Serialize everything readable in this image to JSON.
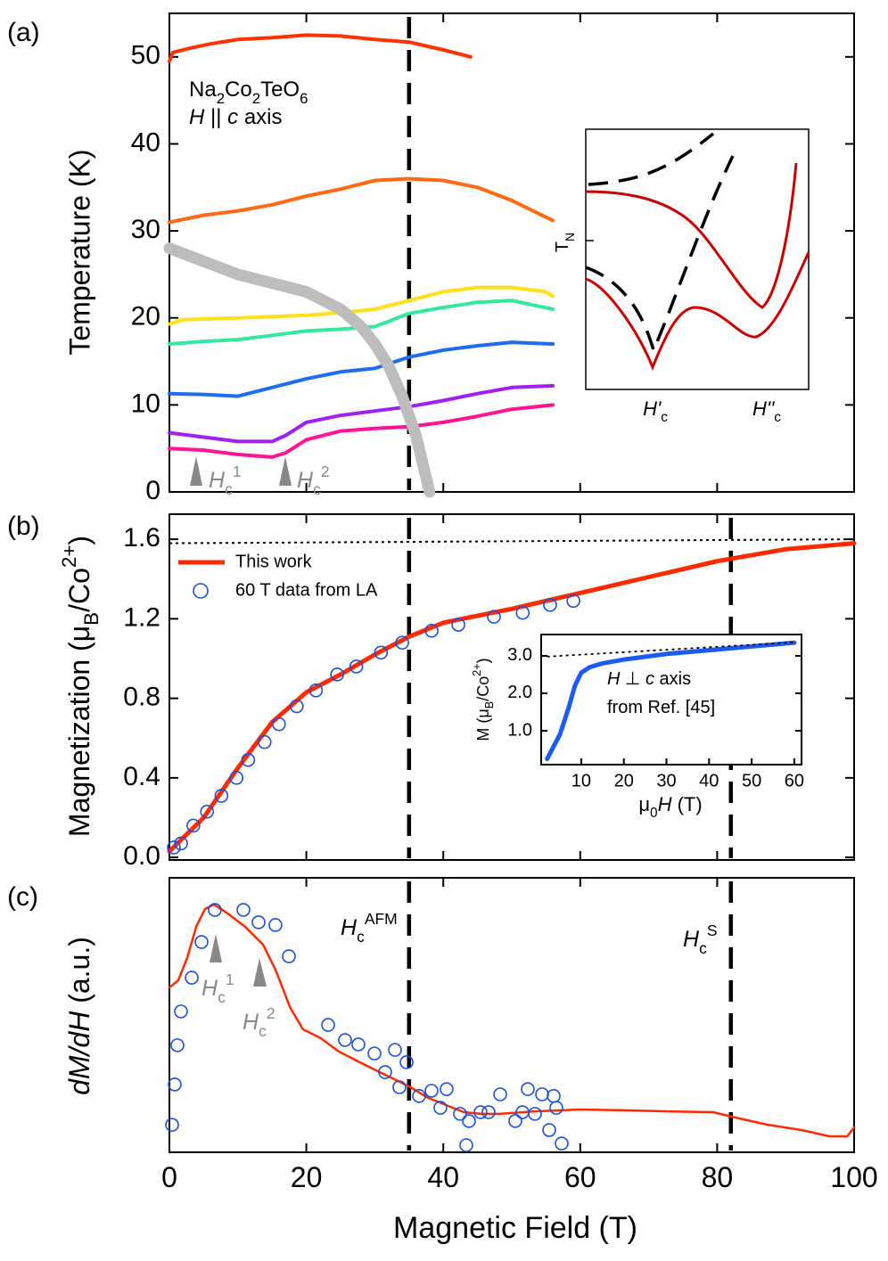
{
  "chart_data": [
    {
      "type": "line",
      "label": "(a)",
      "ylabel": "Temperature (K)",
      "formula": [
        "Na",
        "2",
        "Co",
        "2",
        "TeO",
        "6"
      ],
      "condition": [
        "H",
        " || ",
        "c",
        " axis"
      ],
      "marker_labels": [
        [
          "H",
          "c",
          "1"
        ],
        [
          "H",
          "c",
          "2"
        ]
      ],
      "inset": {
        "ylabel": [
          "T",
          "N"
        ],
        "xlabels": [
          [
            "H'",
            "c"
          ],
          [
            "H''",
            "c"
          ]
        ]
      },
      "xlim": [
        0,
        100
      ],
      "ylim": [
        0,
        55
      ],
      "yticks": [
        0,
        10,
        20,
        30,
        40,
        50
      ],
      "vlines": [
        35
      ],
      "series": [
        {
          "color": "#ff3300",
          "linewidth": 4,
          "x": [
            0,
            0.5,
            3,
            6,
            10,
            15,
            20,
            25,
            30,
            35,
            40,
            44
          ],
          "values": [
            49.5,
            50.5,
            51,
            51.5,
            52,
            52.2,
            52.5,
            52.4,
            52,
            51.7,
            50.8,
            50
          ]
        },
        {
          "color": "#ff6a13",
          "linewidth": 4,
          "x": [
            0,
            5,
            10,
            15,
            20,
            25,
            30,
            35,
            40,
            45,
            50,
            56
          ],
          "values": [
            31,
            31.8,
            32.3,
            33,
            34,
            34.8,
            35.8,
            36,
            35.8,
            35,
            33.5,
            31.2
          ]
        },
        {
          "color": "#ffe019",
          "linewidth": 4,
          "x": [
            0,
            2,
            10,
            20,
            25,
            30,
            35,
            40,
            45,
            50,
            55,
            56
          ],
          "values": [
            19.3,
            19.8,
            20,
            20.3,
            20.6,
            21,
            22,
            23,
            23.5,
            23.5,
            23,
            22.5
          ]
        },
        {
          "color": "#33e8a0",
          "linewidth": 4,
          "x": [
            0,
            5,
            10,
            15,
            20,
            25,
            30,
            35,
            40,
            45,
            50,
            56
          ],
          "values": [
            17,
            17.3,
            17.5,
            18,
            18.5,
            18.7,
            19,
            20.5,
            21.2,
            21.8,
            22,
            21
          ]
        },
        {
          "color": "#1e6cf0",
          "linewidth": 4,
          "x": [
            0,
            5,
            10,
            15,
            20,
            25,
            30,
            35,
            40,
            45,
            50,
            56
          ],
          "values": [
            11.3,
            11.2,
            11,
            12,
            13,
            13.8,
            14.2,
            15.5,
            16.3,
            16.8,
            17.2,
            17
          ]
        },
        {
          "color": "#a020f0",
          "linewidth": 4,
          "x": [
            0,
            5,
            10,
            15,
            17,
            20,
            25,
            30,
            35,
            40,
            45,
            50,
            56
          ],
          "values": [
            6.8,
            6.3,
            5.8,
            5.8,
            6.5,
            8,
            8.8,
            9.3,
            9.8,
            10.5,
            11.3,
            12,
            12.2
          ]
        },
        {
          "color": "#ff1493",
          "linewidth": 4,
          "x": [
            0,
            5,
            10,
            15,
            17,
            20,
            25,
            30,
            35,
            40,
            45,
            50,
            56
          ],
          "values": [
            5,
            4.8,
            4.3,
            4,
            4.5,
            6,
            7,
            7.3,
            7.5,
            8,
            8.7,
            9.5,
            10
          ]
        },
        {
          "color": "#bdbdbd",
          "linewidth": 13,
          "x": [
            0,
            5,
            10,
            15,
            20,
            25,
            28,
            30,
            32,
            34,
            36,
            38
          ],
          "values": [
            28,
            26.5,
            25,
            24,
            23,
            21,
            19,
            17,
            14.5,
            11,
            6.5,
            0
          ]
        }
      ]
    },
    {
      "type": "line",
      "label": "(b)",
      "ylabel": [
        "Magnetization (μ",
        "B",
        "/Co",
        "2+",
        ")"
      ],
      "xlim": [
        0,
        100
      ],
      "ylim": [
        -0.013,
        1.726
      ],
      "yticks": [
        {
          "value": 0,
          "label": "0.0"
        },
        {
          "value": 0.4,
          "label": "0.4"
        },
        {
          "value": 0.8,
          "label": "0.8"
        },
        {
          "value": 1.2,
          "label": "1.2"
        },
        {
          "value": 1.6,
          "label": "1.6"
        }
      ],
      "vlines": [
        35,
        82
      ],
      "legend": "upper left",
      "series": [
        {
          "name": "This work",
          "color": "#ff2a00",
          "linewidth": 5,
          "x": [
            0,
            5,
            10,
            15,
            20,
            25,
            30,
            35,
            40,
            50,
            60,
            70,
            80,
            90,
            100
          ],
          "values": [
            0.03,
            0.2,
            0.45,
            0.68,
            0.83,
            0.92,
            1.02,
            1.11,
            1.18,
            1.25,
            1.33,
            1.41,
            1.49,
            1.55,
            1.58
          ]
        },
        {
          "name": "60 T data from LA",
          "color": "#1a4fe0",
          "marker": "circle",
          "x": [
            0.65,
            1.7,
            3.5,
            5.5,
            7.6,
            9.8,
            11.5,
            13.9,
            16,
            18.6,
            21.4,
            24.5,
            27.3,
            30.9,
            34,
            38.3,
            42.2,
            47.4,
            51.6,
            55.6,
            59
          ],
          "values": [
            0.05,
            0.07,
            0.16,
            0.23,
            0.31,
            0.4,
            0.49,
            0.58,
            0.67,
            0.76,
            0.84,
            0.92,
            0.96,
            1.03,
            1.08,
            1.14,
            1.17,
            1.21,
            1.23,
            1.27,
            1.29
          ]
        },
        {
          "color": "#000000",
          "linewidth": 2,
          "dash": "dotted",
          "x": [
            0,
            100
          ],
          "values": [
            1.58,
            1.6
          ]
        }
      ]
    },
    {
      "type": "line",
      "label": "(c)",
      "ylabel": [
        "dM/dH",
        " (a.u.)"
      ],
      "xlabel": "Magnetic Field (T)",
      "xlim": [
        0,
        100
      ],
      "ylim": [
        0,
        1
      ],
      "xticks": [
        0,
        20,
        40,
        60,
        80,
        100
      ],
      "vlines": [
        35,
        82
      ],
      "marker_labels": [
        [
          "H",
          "c",
          "1"
        ],
        [
          "H",
          "c",
          "2"
        ]
      ],
      "field_labels": [
        [
          "H",
          "c",
          "AFM"
        ],
        [
          "H",
          "c",
          "S"
        ]
      ],
      "series": [
        {
          "color": "#ff2a00",
          "linewidth": 2.5,
          "x": [
            0,
            1.3,
            2.6,
            3.9,
            5.2,
            6.5,
            8.5,
            11.1,
            13.7,
            15.6,
            17.6,
            19.5,
            22.1,
            24.7,
            27.3,
            29.9,
            32.6,
            35.2,
            37.8,
            40.4,
            43,
            45.6,
            48.2,
            53.4,
            59.9,
            66.4,
            72.9,
            79.4,
            83.3,
            87.2,
            92.4,
            96.4,
            99,
            100
          ],
          "values": [
            0.6,
            0.627,
            0.708,
            0.821,
            0.886,
            0.903,
            0.87,
            0.821,
            0.756,
            0.659,
            0.529,
            0.448,
            0.416,
            0.368,
            0.334,
            0.302,
            0.269,
            0.237,
            0.198,
            0.172,
            0.146,
            0.14,
            0.14,
            0.149,
            0.156,
            0.153,
            0.149,
            0.146,
            0.123,
            0.101,
            0.081,
            0.058,
            0.058,
            0.091
          ]
        },
        {
          "color": "#1a4fe0",
          "marker": "circle",
          "x": [
            0.39,
            0.78,
            1.17,
            1.69,
            3.26,
            4.69,
            6.64,
            10.81,
            13.02,
            15.49,
            17.45,
            23.18,
            25.65,
            27.6,
            29.95,
            31.51,
            32.94,
            34.64,
            33.59,
            36.46,
            38.28,
            39.58,
            40.49,
            42.45,
            43.75,
            45.44,
            46.61,
            48.31,
            50.52,
            51.56,
            52.34,
            53.39,
            54.43,
            55.47,
            56.12,
            56.51,
            57.29,
            43.36
          ],
          "values": [
            0.1,
            0.247,
            0.39,
            0.513,
            0.636,
            0.766,
            0.883,
            0.883,
            0.838,
            0.828,
            0.714,
            0.464,
            0.409,
            0.393,
            0.36,
            0.292,
            0.373,
            0.328,
            0.237,
            0.205,
            0.224,
            0.162,
            0.23,
            0.14,
            0.114,
            0.146,
            0.146,
            0.211,
            0.114,
            0.146,
            0.23,
            0.14,
            0.211,
            0.081,
            0.205,
            0.162,
            0.032,
            0.026
          ]
        }
      ]
    },
    {
      "type": "line",
      "ylabel": [
        "M (μ",
        "B",
        "/Co",
        "2+",
        ")"
      ],
      "xlabel": [
        "μ",
        "0",
        "H",
        " (T)"
      ],
      "note": [
        [
          "H",
          " ⊥ ",
          "c",
          " axis"
        ],
        [
          "from Ref. [45]"
        ]
      ],
      "xlim": [
        0.6,
        61.7
      ],
      "ylim": [
        0.095,
        3.57
      ],
      "xticks": [
        10,
        20,
        30,
        40,
        50,
        60
      ],
      "yticks": [
        {
          "value": 1,
          "label": "1.0"
        },
        {
          "value": 2,
          "label": "2.0"
        },
        {
          "value": 3,
          "label": "3.0"
        }
      ],
      "series": [
        {
          "color": "#1a5cf0",
          "linewidth": 5,
          "x": [
            2,
            5,
            7,
            8.5,
            10,
            12,
            15,
            20,
            30,
            40,
            50,
            60
          ],
          "values": [
            0.25,
            0.9,
            1.6,
            2.2,
            2.55,
            2.7,
            2.8,
            2.9,
            3.05,
            3.15,
            3.25,
            3.35
          ]
        },
        {
          "color": "#000000",
          "linewidth": 1.8,
          "dash": "dotted",
          "x": [
            2,
            60
          ],
          "values": [
            2.98,
            3.36
          ]
        }
      ]
    }
  ]
}
